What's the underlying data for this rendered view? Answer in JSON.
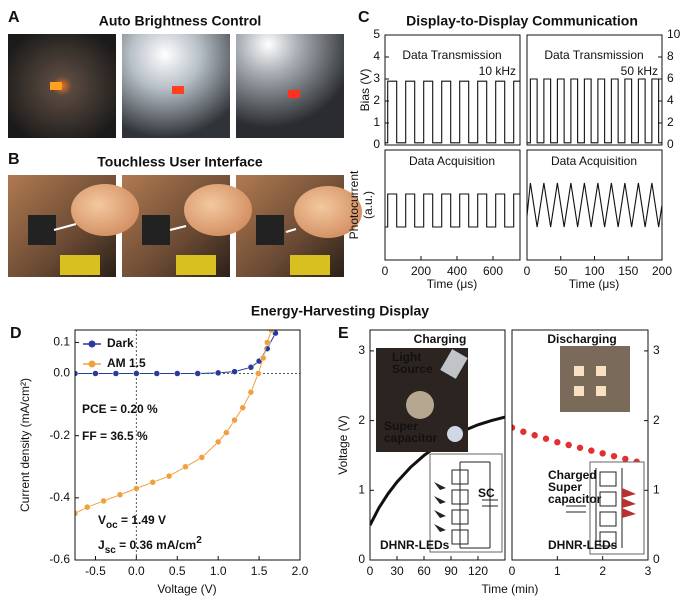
{
  "panel_labels": [
    "A",
    "B",
    "C",
    "D",
    "E"
  ],
  "titles": [
    "Auto Brightness Control",
    "Touchless User Interface",
    "Display-to-Display Communication",
    "Energy-Harvesting Display"
  ],
  "chart_data": [
    {
      "type": "line",
      "ylabel": [
        "Bias (V)"
      ],
      "annotations": [
        {
          "text": "Data Transmission"
        },
        {
          "text": "10 kHz"
        }
      ],
      "xlim": [
        0,
        750
      ],
      "ylim": [
        0,
        5
      ],
      "yticks": [
        0,
        1,
        2,
        3,
        4,
        5
      ],
      "series": [
        {
          "color": "#111111",
          "x": [
            0,
            15,
            15,
            65,
            65,
            115,
            115,
            165,
            165,
            215,
            215,
            265,
            265,
            315,
            315,
            365,
            365,
            415,
            415,
            465,
            465,
            515,
            515,
            565,
            565,
            615,
            615,
            665,
            665,
            715,
            715,
            750
          ],
          "values": [
            0.1,
            0.1,
            2.9,
            2.9,
            0.1,
            0.1,
            2.9,
            2.9,
            0.1,
            0.1,
            2.9,
            2.9,
            0.1,
            0.1,
            2.9,
            2.9,
            0.1,
            0.1,
            2.9,
            2.9,
            0.1,
            0.1,
            2.9,
            2.9,
            0.1,
            0.1,
            2.9,
            2.9,
            0.1,
            0.1,
            2.9,
            2.9
          ]
        }
      ]
    },
    {
      "type": "line",
      "annotations": [
        {
          "text": "Data Transmission"
        },
        {
          "text": "50 kHz"
        }
      ],
      "xlim": [
        0,
        200
      ],
      "y2lim": [
        0,
        10
      ],
      "y2ticks": [
        0,
        2,
        4,
        6,
        8,
        10
      ],
      "series": [
        {
          "color": "#111111",
          "axis": "y2",
          "x": [
            0,
            5,
            5,
            15,
            15,
            25,
            25,
            35,
            35,
            45,
            45,
            55,
            55,
            65,
            65,
            75,
            75,
            85,
            85,
            95,
            95,
            105,
            105,
            115,
            115,
            125,
            125,
            135,
            135,
            145,
            145,
            155,
            155,
            165,
            165,
            175,
            175,
            185,
            185,
            195,
            195,
            200
          ],
          "values": [
            0.2,
            0.2,
            6,
            6,
            0.2,
            0.2,
            6,
            6,
            0.2,
            0.2,
            6,
            6,
            0.2,
            0.2,
            6,
            6,
            0.2,
            0.2,
            6,
            6,
            0.2,
            0.2,
            6,
            6,
            0.2,
            0.2,
            6,
            6,
            0.2,
            0.2,
            6,
            6,
            0.2,
            0.2,
            6,
            6,
            0.2,
            0.2,
            6,
            6,
            0.2,
            0.2
          ]
        }
      ]
    },
    {
      "type": "line",
      "ylabel": [
        "Photocurrent",
        "(a.u.)"
      ],
      "xlabel": "Time (μs)",
      "annotations": [
        {
          "text": "Data Acquisition"
        }
      ],
      "xlim": [
        0,
        750
      ],
      "ylim": [
        0,
        1
      ],
      "xticks": [
        0,
        200,
        400,
        600
      ],
      "series": [
        {
          "color": "#111111",
          "x": [
            0,
            15,
            15,
            65,
            65,
            115,
            115,
            165,
            165,
            215,
            215,
            265,
            265,
            315,
            315,
            365,
            365,
            415,
            415,
            465,
            465,
            515,
            515,
            565,
            565,
            615,
            615,
            665,
            665,
            715,
            715,
            750
          ],
          "values": [
            0.3,
            0.3,
            0.6,
            0.6,
            0.3,
            0.3,
            0.6,
            0.6,
            0.3,
            0.3,
            0.6,
            0.6,
            0.3,
            0.3,
            0.6,
            0.6,
            0.3,
            0.3,
            0.6,
            0.6,
            0.3,
            0.3,
            0.6,
            0.6,
            0.3,
            0.3,
            0.6,
            0.6,
            0.3,
            0.3,
            0.6,
            0.6
          ]
        }
      ]
    },
    {
      "type": "line",
      "xlabel": "Time (μs)",
      "annotations": [
        {
          "text": "Data Acquisition"
        }
      ],
      "xlim": [
        0,
        200
      ],
      "ylim": [
        0,
        1
      ],
      "xticks": [
        0,
        50,
        100,
        150,
        200
      ],
      "series": [
        {
          "color": "#111111",
          "x": [
            0,
            5,
            15,
            25,
            35,
            45,
            55,
            65,
            75,
            85,
            95,
            105,
            115,
            125,
            135,
            145,
            155,
            165,
            175,
            185,
            195,
            200
          ],
          "values": [
            0.4,
            0.7,
            0.3,
            0.7,
            0.3,
            0.7,
            0.3,
            0.7,
            0.3,
            0.7,
            0.3,
            0.7,
            0.3,
            0.7,
            0.3,
            0.7,
            0.3,
            0.7,
            0.3,
            0.7,
            0.3,
            0.5
          ]
        }
      ]
    },
    {
      "type": "line",
      "xlabel": "Voltage (V)",
      "ylabel": [
        "Current density (mA/cm²)"
      ],
      "legend": "upper left",
      "annotations": [
        {
          "text": "PCE = 0.20 %"
        },
        {
          "text": "FF    = 36.5 %"
        },
        {
          "text": "V",
          "sub": "oc",
          "rest": " = 1.49 V"
        },
        {
          "text": "J",
          "sub": "sc",
          "rest": " = 0.36 mA/cm",
          "sup": "2"
        }
      ],
      "xlim": [
        -0.75,
        2.0
      ],
      "ylim": [
        -0.6,
        0.14
      ],
      "xticks": [
        -0.5,
        {
          "value": 0,
          "label": "0.0"
        },
        0.5,
        {
          "value": 1,
          "label": "1.0"
        },
        1.5,
        {
          "value": 2,
          "label": "2.0"
        }
      ],
      "yticks": [
        0.1,
        {
          "value": 0,
          "label": "0.0"
        },
        -0.2,
        -0.4,
        -0.6
      ],
      "series": [
        {
          "name": "Dark",
          "color": "#2a3a9c",
          "marker": true,
          "x": [
            -0.75,
            -0.5,
            -0.25,
            0,
            0.25,
            0.5,
            0.75,
            1.0,
            1.2,
            1.4,
            1.5,
            1.6,
            1.7
          ],
          "values": [
            0,
            0,
            0,
            0,
            0,
            0,
            0,
            0.002,
            0.006,
            0.02,
            0.04,
            0.08,
            0.13
          ]
        },
        {
          "name": "AM 1.5",
          "color": "#f0a040",
          "marker": true,
          "x": [
            -0.75,
            -0.6,
            -0.4,
            -0.2,
            0,
            0.2,
            0.4,
            0.6,
            0.8,
            1.0,
            1.1,
            1.2,
            1.3,
            1.4,
            1.49,
            1.55,
            1.6,
            1.65
          ],
          "values": [
            -0.45,
            -0.43,
            -0.41,
            -0.39,
            -0.37,
            -0.35,
            -0.33,
            -0.3,
            -0.27,
            -0.22,
            -0.19,
            -0.15,
            -0.11,
            -0.06,
            0,
            0.05,
            0.1,
            0.14
          ]
        }
      ]
    },
    {
      "type": "line",
      "title": "Charging",
      "xlabel": "Time (min)",
      "ylabel": [
        "Voltage (V)"
      ],
      "inset_labels": [
        [
          "Light",
          "Source"
        ],
        [
          "Super",
          "capacitor"
        ],
        [
          "SC"
        ],
        [
          "DHNR-LEDs"
        ]
      ],
      "xlim": [
        0,
        150
      ],
      "ylim": [
        0,
        3.3
      ],
      "xticks": [
        0,
        30,
        60,
        90,
        120
      ],
      "yticks": [
        0,
        1,
        2,
        3
      ],
      "series": [
        {
          "color": "#111111",
          "x": [
            0,
            10,
            20,
            30,
            45,
            60,
            75,
            90,
            105,
            120,
            135,
            150
          ],
          "values": [
            0.5,
            0.75,
            0.95,
            1.12,
            1.33,
            1.5,
            1.64,
            1.76,
            1.86,
            1.94,
            2.0,
            2.05
          ]
        }
      ]
    },
    {
      "type": "line",
      "title": "Discharging",
      "title_color": "#d62828",
      "inset_labels": [
        [
          "Charged",
          "Super",
          "capacitor"
        ],
        [
          "DHNR-LEDs"
        ]
      ],
      "xlim": [
        0,
        3
      ],
      "y2lim": [
        0,
        3.3
      ],
      "xticks": [
        0,
        1,
        2,
        3
      ],
      "y2ticks": [
        0,
        1,
        2,
        3
      ],
      "series": [
        {
          "color": "#e03030",
          "axis": "y2",
          "marker": true,
          "x": [
            0,
            0.25,
            0.5,
            0.75,
            1.0,
            1.25,
            1.5,
            1.75,
            2.0,
            2.25,
            2.5,
            2.75
          ],
          "values": [
            1.9,
            1.84,
            1.79,
            1.74,
            1.69,
            1.65,
            1.61,
            1.57,
            1.53,
            1.49,
            1.45,
            1.41
          ]
        }
      ]
    }
  ]
}
